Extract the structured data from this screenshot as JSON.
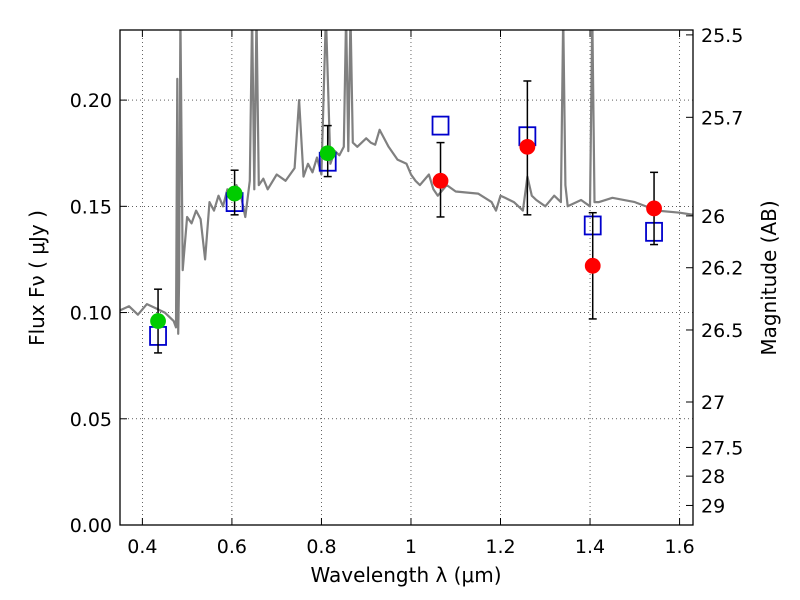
{
  "chart_data": {
    "type": "scatter",
    "xlabel": "Wavelength  λ (μm)",
    "ylabel": "Flux  Fν  ( μJy )",
    "ylabel_right": "Magnitude (AB)",
    "xlim": [
      0.35,
      1.63
    ],
    "ylim": [
      0.0,
      0.233
    ],
    "xticks": [
      0.4,
      0.6,
      0.8,
      1.0,
      1.2,
      1.4,
      1.6
    ],
    "xtick_labels": [
      "0.4",
      "0.6",
      "0.8",
      "1",
      "1.2",
      "1.4",
      "1.6"
    ],
    "yticks": [
      0.0,
      0.05,
      0.1,
      0.15,
      0.2
    ],
    "ytick_labels": [
      "0.00",
      "0.05",
      "0.10",
      "0.15",
      "0.20"
    ],
    "right_ticks": [
      {
        "label": "25.5",
        "flux": 0.2307
      },
      {
        "label": "25.7",
        "flux": 0.1919
      },
      {
        "label": "26",
        "flux": 0.1455
      },
      {
        "label": "26.2",
        "flux": 0.1211
      },
      {
        "label": "26.5",
        "flux": 0.0918
      },
      {
        "label": "27",
        "flux": 0.0579
      },
      {
        "label": "27.5",
        "flux": 0.0365
      },
      {
        "label": "28",
        "flux": 0.023
      },
      {
        "label": "29",
        "flux": 0.0092
      }
    ],
    "grid": true,
    "colors": {
      "model": "#808080",
      "green": "#00cc00",
      "red": "#ff0000",
      "box": "#0000cc",
      "errorbar": "#000000"
    },
    "series": [
      {
        "marker": "green-circle",
        "x": [
          0.435,
          0.606,
          0.814
        ],
        "y": [
          0.096,
          0.156,
          0.175
        ],
        "yerr_low": [
          0.081,
          0.146,
          0.164
        ],
        "yerr_high": [
          0.111,
          0.167,
          0.188
        ]
      },
      {
        "marker": "red-circle",
        "x": [
          1.066,
          1.26,
          1.406,
          1.543
        ],
        "y": [
          0.162,
          0.178,
          0.122,
          0.149
        ],
        "yerr_low": [
          0.145,
          0.146,
          0.097,
          0.132
        ],
        "yerr_high": [
          0.18,
          0.209,
          0.147,
          0.166
        ]
      },
      {
        "marker": "blue-open-square",
        "x": [
          0.435,
          0.606,
          0.814,
          1.066,
          1.26,
          1.406,
          1.543
        ],
        "y": [
          0.089,
          0.152,
          0.171,
          0.188,
          0.183,
          0.141,
          0.138
        ]
      },
      {
        "marker": "gray-line",
        "x": [
          0.35,
          0.37,
          0.39,
          0.41,
          0.43,
          0.45,
          0.47,
          0.475,
          0.478,
          0.48,
          0.482,
          0.485,
          0.49,
          0.5,
          0.51,
          0.52,
          0.53,
          0.54,
          0.55,
          0.56,
          0.57,
          0.58,
          0.59,
          0.6,
          0.61,
          0.62,
          0.63,
          0.64,
          0.645,
          0.65,
          0.655,
          0.66,
          0.67,
          0.68,
          0.7,
          0.72,
          0.74,
          0.75,
          0.76,
          0.77,
          0.78,
          0.79,
          0.8,
          0.81,
          0.82,
          0.83,
          0.84,
          0.85,
          0.855,
          0.86,
          0.865,
          0.87,
          0.88,
          0.9,
          0.91,
          0.92,
          0.93,
          0.95,
          0.97,
          0.99,
          1.0,
          1.01,
          1.02,
          1.04,
          1.05,
          1.06,
          1.08,
          1.1,
          1.15,
          1.18,
          1.19,
          1.2,
          1.21,
          1.23,
          1.25,
          1.26,
          1.27,
          1.28,
          1.3,
          1.32,
          1.335,
          1.34,
          1.345,
          1.35,
          1.38,
          1.4,
          1.405,
          1.41,
          1.42,
          1.45,
          1.5,
          1.55,
          1.6,
          1.63
        ],
        "y": [
          0.101,
          0.103,
          0.099,
          0.104,
          0.102,
          0.1,
          0.096,
          0.093,
          0.21,
          0.09,
          0.115,
          0.24,
          0.12,
          0.145,
          0.142,
          0.148,
          0.144,
          0.125,
          0.152,
          0.148,
          0.155,
          0.15,
          0.158,
          0.153,
          0.16,
          0.155,
          0.145,
          0.162,
          0.24,
          0.158,
          0.24,
          0.16,
          0.163,
          0.158,
          0.165,
          0.162,
          0.168,
          0.2,
          0.164,
          0.17,
          0.166,
          0.173,
          0.165,
          0.24,
          0.17,
          0.176,
          0.174,
          0.178,
          0.24,
          0.176,
          0.24,
          0.18,
          0.178,
          0.182,
          0.18,
          0.179,
          0.186,
          0.178,
          0.172,
          0.17,
          0.165,
          0.162,
          0.16,
          0.165,
          0.158,
          0.155,
          0.16,
          0.157,
          0.156,
          0.152,
          0.148,
          0.155,
          0.154,
          0.152,
          0.148,
          0.164,
          0.155,
          0.153,
          0.15,
          0.155,
          0.152,
          0.24,
          0.16,
          0.15,
          0.153,
          0.15,
          0.24,
          0.152,
          0.152,
          0.154,
          0.152,
          0.148,
          0.147,
          0.146
        ]
      }
    ]
  }
}
